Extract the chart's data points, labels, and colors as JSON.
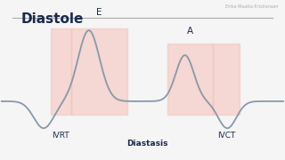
{
  "title": "Diastole",
  "watermark": "Erika Maatta Kristiansen",
  "bg_color": "#f5f5f5",
  "line_color": "#8899aa",
  "highlight_color": "#f5c0b8",
  "highlight_alpha": 0.55,
  "text_color": "#1a2a4a",
  "label_E": "E",
  "label_A": "A",
  "label_IVRT": "IVRT",
  "label_IVCT": "IVCT",
  "label_Diastasis": "Diastasis",
  "title_fontsize": 11,
  "label_fontsize": 6.5
}
